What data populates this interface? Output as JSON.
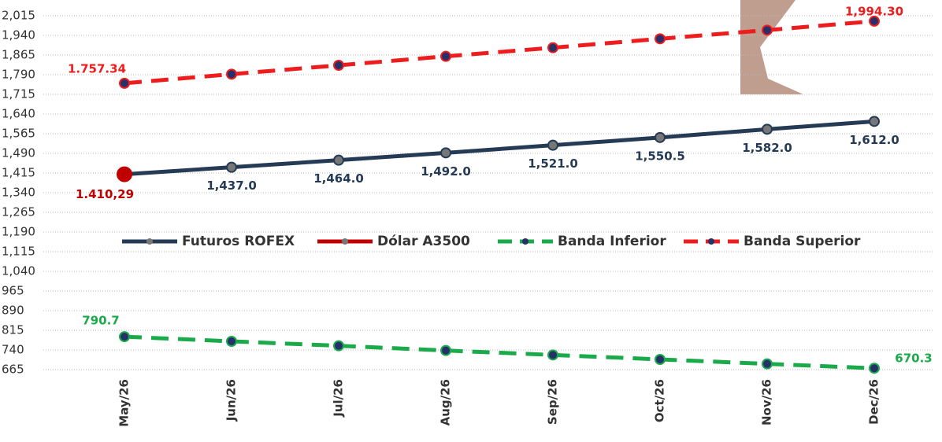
{
  "chart_data": {
    "type": "line",
    "categories": [
      "May/26",
      "Jun/26",
      "Jul/26",
      "Aug/26",
      "Sep/26",
      "Oct/26",
      "Nov/26",
      "Dec/26"
    ],
    "ylim": [
      665,
      2015
    ],
    "yticks": [
      {
        "value": 665,
        "label": "665"
      },
      {
        "value": 740,
        "label": "740"
      },
      {
        "value": 815,
        "label": "815"
      },
      {
        "value": 890,
        "label": "890"
      },
      {
        "value": 965,
        "label": "965"
      },
      {
        "value": 1040,
        "label": "1,040"
      },
      {
        "value": 1115,
        "label": "1,115"
      },
      {
        "value": 1190,
        "label": "1,190"
      },
      {
        "value": 1265,
        "label": "1,265"
      },
      {
        "value": 1340,
        "label": "1,340"
      },
      {
        "value": 1415,
        "label": "1,415"
      },
      {
        "value": 1490,
        "label": "1,490"
      },
      {
        "value": 1565,
        "label": "1,565"
      },
      {
        "value": 1640,
        "label": "1,640"
      },
      {
        "value": 1715,
        "label": "1,715"
      },
      {
        "value": 1790,
        "label": "1,790"
      },
      {
        "value": 1865,
        "label": "1,865"
      },
      {
        "value": 1940,
        "label": "1,940"
      },
      {
        "value": 2015,
        "label": "2,015"
      }
    ],
    "grid": true,
    "series": [
      {
        "name": "Futuros ROFEX",
        "color": "#243a55",
        "dash": false,
        "values": [
          1410.29,
          1437.0,
          1464.0,
          1492.0,
          1521.0,
          1550.5,
          1582.0,
          1612.0
        ],
        "value_labels": [
          null,
          "1,437.0",
          "1,464.0",
          "1,492.0",
          "1,521.0",
          "1,550.5",
          "1,582.0",
          "1,612.0"
        ]
      },
      {
        "name": "Dólar A3500",
        "color": "#c00000",
        "dash": false,
        "values": [
          1410.29,
          null,
          null,
          null,
          null,
          null,
          null,
          null
        ],
        "value_labels": [
          "1.410,29",
          null,
          null,
          null,
          null,
          null,
          null,
          null
        ]
      },
      {
        "name": "Banda Inferior",
        "color": "#1aaa4a",
        "dash": true,
        "values": [
          790.7,
          773,
          756,
          738,
          721,
          704,
          687,
          670.3
        ],
        "value_labels": [
          "790.7",
          null,
          null,
          null,
          null,
          null,
          null,
          "670.3"
        ]
      },
      {
        "name": "Banda Superior",
        "color": "#ee1c1c",
        "dash": true,
        "values": [
          1757.34,
          1792,
          1826,
          1860,
          1893,
          1927,
          1960,
          1994.3
        ],
        "value_labels": [
          "1.757.34",
          null,
          null,
          null,
          null,
          null,
          null,
          "1,994.30"
        ]
      }
    ]
  }
}
